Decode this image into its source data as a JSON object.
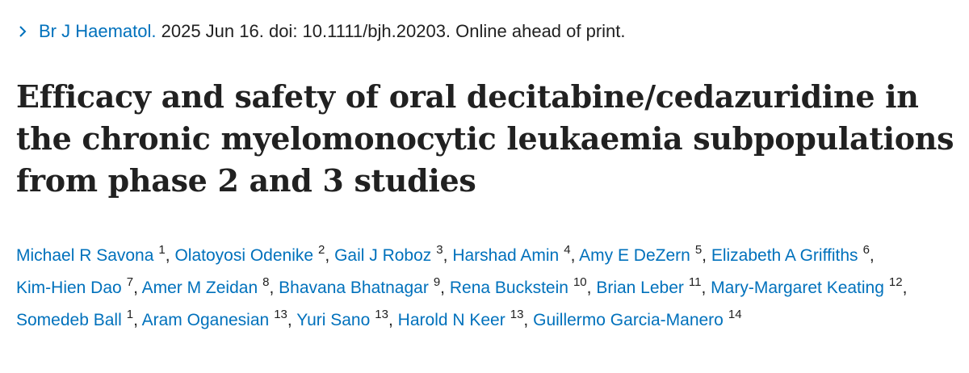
{
  "citation": {
    "journal": "Br J Haematol.",
    "details": "2025 Jun 16. doi: 10.1111/bjh.20203. Online ahead of print."
  },
  "title": "Efficacy and safety of oral decitabine/cedazuridine in the chronic myelomonocytic leukaemia subpopulations from phase 2 and 3 studies",
  "authors": [
    {
      "name": "Michael R Savona",
      "aff": "1"
    },
    {
      "name": "Olatoyosi Odenike",
      "aff": "2"
    },
    {
      "name": "Gail J Roboz",
      "aff": "3"
    },
    {
      "name": "Harshad Amin",
      "aff": "4"
    },
    {
      "name": "Amy E DeZern",
      "aff": "5"
    },
    {
      "name": "Elizabeth A Griffiths",
      "aff": "6"
    },
    {
      "name": "Kim-Hien Dao",
      "aff": "7"
    },
    {
      "name": "Amer M Zeidan",
      "aff": "8"
    },
    {
      "name": "Bhavana Bhatnagar",
      "aff": "9"
    },
    {
      "name": "Rena Buckstein",
      "aff": "10"
    },
    {
      "name": "Brian Leber",
      "aff": "11"
    },
    {
      "name": "Mary-Margaret Keating",
      "aff": "12"
    },
    {
      "name": "Somedeb Ball",
      "aff": "1"
    },
    {
      "name": "Aram Oganesian",
      "aff": "13"
    },
    {
      "name": "Yuri Sano",
      "aff": "13"
    },
    {
      "name": "Harold N Keer",
      "aff": "13"
    },
    {
      "name": "Guillermo Garcia-Manero",
      "aff": "14"
    }
  ],
  "colors": {
    "link": "#0071bc",
    "text": "#212121"
  }
}
